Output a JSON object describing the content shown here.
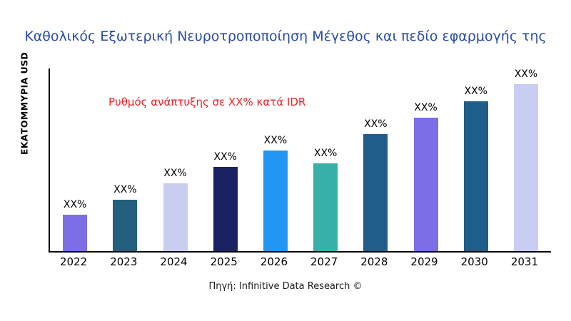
{
  "source": "Πηγή: Infinitive Data Research ©",
  "chart_data": {
    "type": "bar",
    "title": "Καθολικός Εξωτερική Νευροτροποποίηση Μέγεθος και πεδίο εφαρμογής της",
    "title_color": "#2b4da6",
    "ylabel": "ΕΚΑΤΟΜΜΥΡΙΑ USD",
    "xlabel": "",
    "annotation": "Ρυθμός ανάπτυξης σε XX% κατά IDR",
    "annotation_color": "#ed2024",
    "categories": [
      "2022",
      "2023",
      "2024",
      "2025",
      "2026",
      "2027",
      "2028",
      "2029",
      "2030",
      "2031"
    ],
    "values": [
      20,
      28,
      37,
      46,
      55,
      48,
      64,
      73,
      82,
      92
    ],
    "bar_labels": [
      "XX%",
      "XX%",
      "XX%",
      "XX%",
      "XX%",
      "XX%",
      "XX%",
      "XX%",
      "XX%",
      "XX%"
    ],
    "bar_colors": [
      "#7c6ee6",
      "#235e7d",
      "#c9cdf2",
      "#1b2264",
      "#2196f3",
      "#36b0a8",
      "#1f5d8a",
      "#7c6ee6",
      "#1f5d8a",
      "#c9cdf2"
    ],
    "ylim": [
      0,
      100
    ],
    "grid": false,
    "legend": "none"
  }
}
